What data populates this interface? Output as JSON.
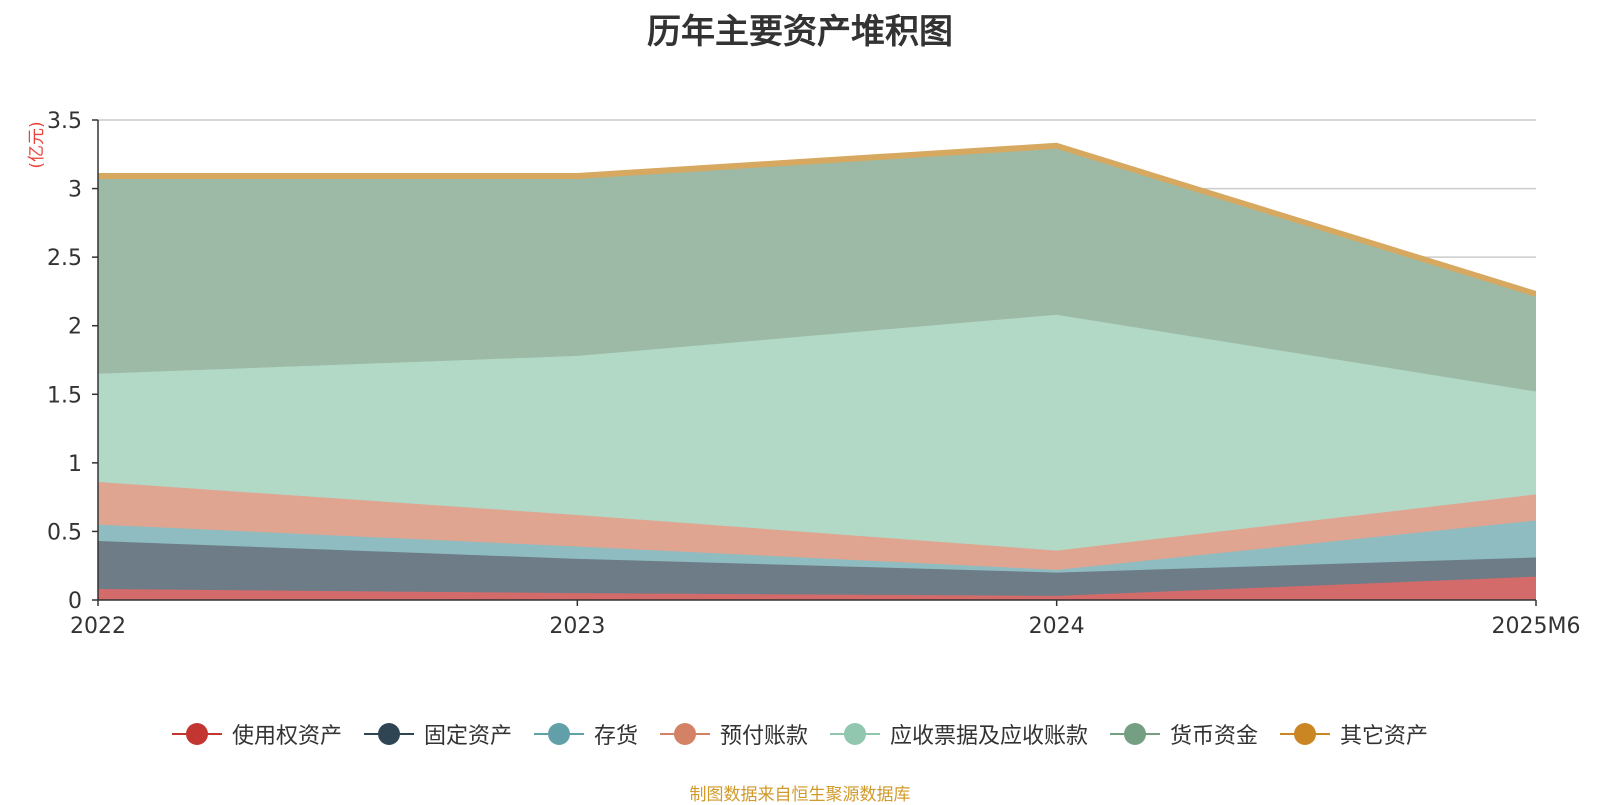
{
  "chart_data": {
    "type": "area",
    "stacked": true,
    "title": "历年主要资产堆积图",
    "unit": "(亿元)",
    "categories": [
      "2022",
      "2023",
      "2024",
      "2025M6"
    ],
    "ylim": [
      0,
      3.5
    ],
    "yticks": [
      "0",
      "0.5",
      "1",
      "1.5",
      "2",
      "2.5",
      "3",
      "3.5"
    ],
    "grid": true,
    "legend_position": "bottom",
    "series": [
      {
        "name": "使用权资产",
        "values": [
          0.08,
          0.05,
          0.03,
          0.17
        ],
        "color": "#c23531",
        "fill": "#d46b6b"
      },
      {
        "name": "固定资产",
        "values": [
          0.35,
          0.25,
          0.17,
          0.14
        ],
        "color": "#2f4554",
        "fill": "#6d7c87"
      },
      {
        "name": "存货",
        "values": [
          0.12,
          0.09,
          0.02,
          0.27
        ],
        "color": "#61a0a8",
        "fill": "#8fbcc0"
      },
      {
        "name": "预付账款",
        "values": [
          0.31,
          0.23,
          0.14,
          0.19
        ],
        "color": "#d48265",
        "fill": "#e0a590"
      },
      {
        "name": "应收票据及应收账款",
        "values": [
          0.79,
          1.16,
          1.72,
          0.75
        ],
        "color": "#91c7ae",
        "fill": "#b2d8c6"
      },
      {
        "name": "货币资金",
        "values": [
          1.42,
          1.29,
          1.21,
          0.69
        ],
        "color": "#749f83",
        "fill": "#9cbaa5"
      },
      {
        "name": "其它资产",
        "values": [
          0.04,
          0.04,
          0.04,
          0.04
        ],
        "color": "#ca8622",
        "fill": "#d7a860"
      }
    ]
  },
  "source": "制图数据来自恒生聚源数据库"
}
